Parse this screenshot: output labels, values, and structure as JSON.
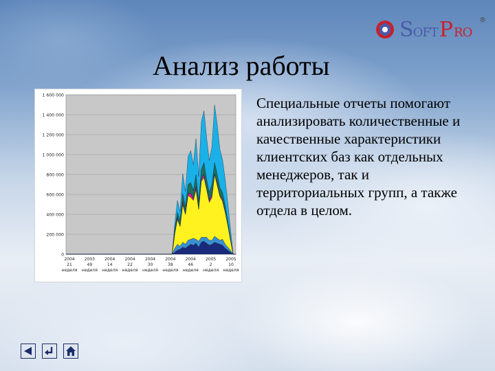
{
  "logo": {
    "soft_initial": "S",
    "soft_rest": "OFT",
    "pro_initial": "P",
    "pro_rest": "RO",
    "reg_mark": "®",
    "icon": "softpro-logo-icon"
  },
  "slide": {
    "title": "Анализ работы",
    "body": "Специальные отчеты помогают анализировать количественные и качественные характеристики клиентских баз как отдельных менеджеров, так и территориальных групп, а также отдела в целом."
  },
  "nav": {
    "buttons": [
      {
        "name": "back-button",
        "icon": "triangle-left-icon"
      },
      {
        "name": "return-button",
        "icon": "return-arrow-icon"
      },
      {
        "name": "home-button",
        "icon": "home-icon"
      }
    ]
  },
  "colors": {
    "nav_icon": "#1a2d6b",
    "plot_bg": "#c8c8c8",
    "soft_text": "#4b5aa8",
    "pro_text": "#c8202b"
  },
  "chart_data": {
    "type": "area",
    "stacked": true,
    "ylim": [
      0,
      1600000
    ],
    "yticks": [
      "0",
      "200 000",
      "400 000",
      "600 000",
      "800 000",
      "1 000 000",
      "1 200 000",
      "1 400 000",
      "1 600 000"
    ],
    "xtick_labels": [
      [
        "2004",
        "21",
        "неделя"
      ],
      [
        "2003",
        "49",
        "неделя"
      ],
      [
        "2004",
        "14",
        "неделя"
      ],
      [
        "2004",
        "22",
        "неделя"
      ],
      [
        "2004",
        "30",
        "неделя"
      ],
      [
        "2004",
        "38",
        "неделя"
      ],
      [
        "2004",
        "46",
        "неделя"
      ],
      [
        "2005",
        "2",
        "неделя"
      ],
      [
        "2005",
        "10",
        "неделя"
      ]
    ],
    "grid": true,
    "legend": "none",
    "series": [
      {
        "color": "#1a2a7a",
        "values": [
          0,
          0,
          0,
          0,
          0,
          0,
          0,
          0,
          0,
          0,
          0,
          0,
          0,
          0,
          0,
          0,
          0,
          0,
          0,
          0,
          0,
          0,
          0,
          0,
          0,
          0,
          0,
          0,
          0,
          0,
          0,
          0,
          0,
          0,
          0,
          0,
          0,
          0,
          0,
          0,
          0,
          20000,
          40000,
          50000,
          70000,
          60000,
          80000,
          100000,
          90000,
          110000,
          70000,
          120000,
          130000,
          110000,
          90000,
          100000,
          120000,
          110000,
          100000,
          90000,
          60000,
          40000,
          20000,
          0,
          0
        ]
      },
      {
        "color": "#3a8fd0",
        "values": [
          0,
          0,
          0,
          0,
          0,
          0,
          0,
          0,
          0,
          0,
          0,
          0,
          0,
          0,
          0,
          0,
          0,
          0,
          0,
          0,
          0,
          0,
          0,
          0,
          0,
          0,
          0,
          0,
          0,
          0,
          0,
          0,
          0,
          0,
          0,
          0,
          0,
          0,
          0,
          0,
          0,
          40000,
          60000,
          30000,
          50000,
          40000,
          60000,
          50000,
          70000,
          40000,
          60000,
          50000,
          40000,
          60000,
          50000,
          40000,
          60000,
          50000,
          40000,
          60000,
          40000,
          30000,
          20000,
          0,
          0
        ]
      },
      {
        "color": "#fff21e",
        "values": [
          0,
          0,
          0,
          0,
          0,
          0,
          0,
          0,
          0,
          0,
          0,
          0,
          0,
          0,
          0,
          0,
          0,
          0,
          0,
          0,
          0,
          0,
          0,
          0,
          0,
          0,
          0,
          0,
          0,
          0,
          0,
          0,
          0,
          0,
          0,
          0,
          0,
          0,
          0,
          0,
          0,
          150000,
          250000,
          200000,
          380000,
          300000,
          450000,
          420000,
          380000,
          500000,
          320000,
          560000,
          600000,
          480000,
          380000,
          430000,
          620000,
          530000,
          440000,
          380000,
          320000,
          220000,
          100000,
          0,
          0
        ]
      },
      {
        "color": "#e0188c",
        "values": [
          0,
          0,
          0,
          0,
          0,
          0,
          0,
          0,
          0,
          0,
          0,
          0,
          0,
          0,
          0,
          0,
          0,
          0,
          0,
          0,
          0,
          0,
          0,
          0,
          0,
          0,
          0,
          0,
          0,
          0,
          0,
          0,
          0,
          0,
          0,
          0,
          0,
          0,
          0,
          0,
          0,
          0,
          20000,
          0,
          30000,
          10000,
          20000,
          40000,
          20000,
          30000,
          10000,
          20000,
          30000,
          10000,
          20000,
          30000,
          10000,
          20000,
          10000,
          20000,
          10000,
          0,
          0,
          0,
          0
        ]
      },
      {
        "color": "#1f6f5c",
        "values": [
          0,
          0,
          0,
          0,
          0,
          0,
          0,
          0,
          0,
          0,
          0,
          0,
          0,
          0,
          0,
          0,
          0,
          0,
          0,
          0,
          0,
          0,
          0,
          0,
          0,
          0,
          0,
          0,
          0,
          0,
          0,
          0,
          0,
          0,
          0,
          0,
          0,
          0,
          0,
          0,
          0,
          40000,
          50000,
          60000,
          80000,
          70000,
          90000,
          110000,
          80000,
          120000,
          70000,
          100000,
          120000,
          90000,
          80000,
          100000,
          110000,
          90000,
          80000,
          70000,
          60000,
          40000,
          20000,
          0,
          0
        ]
      },
      {
        "color": "#1ab0e8",
        "values": [
          0,
          0,
          0,
          0,
          0,
          0,
          0,
          0,
          0,
          0,
          0,
          0,
          0,
          0,
          0,
          0,
          0,
          0,
          0,
          0,
          0,
          0,
          0,
          0,
          0,
          0,
          0,
          0,
          0,
          0,
          0,
          0,
          0,
          0,
          0,
          0,
          0,
          0,
          0,
          0,
          0,
          60000,
          120000,
          90000,
          200000,
          150000,
          280000,
          320000,
          260000,
          360000,
          250000,
          480000,
          520000,
          420000,
          320000,
          380000,
          580000,
          500000,
          380000,
          330000,
          260000,
          180000,
          90000,
          0,
          0
        ]
      }
    ]
  }
}
